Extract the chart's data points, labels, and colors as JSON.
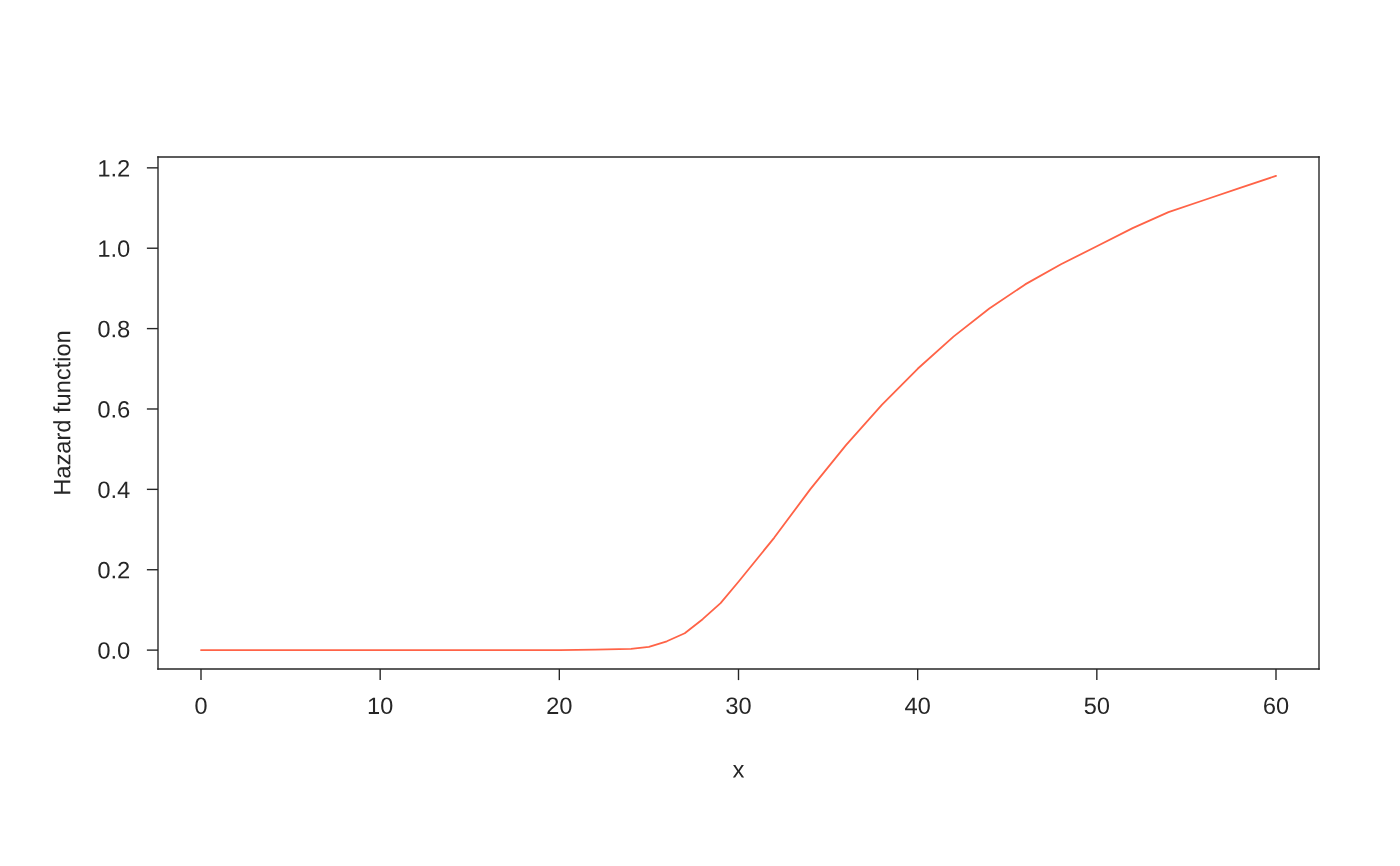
{
  "chart_data": {
    "type": "line",
    "xlabel": "x",
    "ylabel": "Hazard function",
    "x": [
      0,
      5,
      10,
      15,
      20,
      22,
      24,
      25,
      26,
      27,
      28,
      29,
      30,
      32,
      34,
      36,
      38,
      40,
      42,
      44,
      46,
      48,
      50,
      52,
      54,
      56,
      58,
      60
    ],
    "series": [
      {
        "color": "#ff6347",
        "values": [
          0,
          0,
          0,
          0,
          0,
          0.001,
          0.003,
          0.008,
          0.022,
          0.042,
          0.077,
          0.117,
          0.17,
          0.28,
          0.4,
          0.51,
          0.61,
          0.7,
          0.78,
          0.85,
          0.91,
          0.96,
          1.005,
          1.05,
          1.09,
          1.12,
          1.15,
          1.18
        ]
      }
    ],
    "xlim": [
      -2.4,
      62.4
    ],
    "ylim": [
      -0.047,
      1.227
    ],
    "xticks": [
      0,
      10,
      20,
      30,
      40,
      50,
      60
    ],
    "yticks": [
      {
        "value": 0,
        "label": "0.0"
      },
      {
        "value": 0.2,
        "label": "0.2"
      },
      {
        "value": 0.4,
        "label": "0.4"
      },
      {
        "value": 0.6,
        "label": "0.6"
      },
      {
        "value": 0.8,
        "label": "0.8"
      },
      {
        "value": 1.0,
        "label": "1.0"
      },
      {
        "value": 1.2,
        "label": "1.2"
      }
    ],
    "grid": false,
    "legend": false
  }
}
